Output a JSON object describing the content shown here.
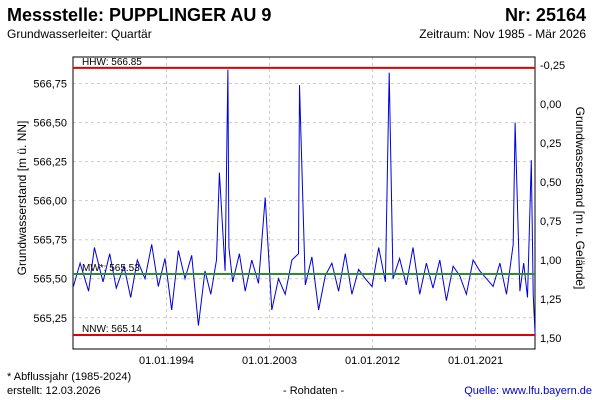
{
  "header": {
    "title": "Messstelle: PUPPLINGER AU 9",
    "number": "Nr: 25164",
    "aquifer": "Grundwasserleiter: Quartär",
    "period": "Zeitraum: Nov 1985 - Mär 2026"
  },
  "footer": {
    "note": "* Abflussjahr (1985-2024)",
    "created": "erstellt:  12.03.2026",
    "raw": "- Rohdaten -",
    "source": "Quelle: www.lfu.bayern.de"
  },
  "colors": {
    "series": "#0000dd",
    "extremes": "#e00000",
    "mean": "#2e8b2e",
    "grid": "#cccccc"
  },
  "chart_data": {
    "type": "line",
    "xlabel": "",
    "ylabel": "Grundwasserstand [m ü. NN]",
    "y2label": "Grundwasserstand [m u. Gelände]",
    "x_range": [
      "1985-11-01",
      "2026-03-12"
    ],
    "ylim": [
      565.05,
      566.92
    ],
    "y2lim": [
      1.57,
      -0.3
    ],
    "x_ticks": [
      "01.01.1994",
      "01.01.2003",
      "01.01.2012",
      "01.01.2021"
    ],
    "y_ticks": [
      "565,25",
      "565,50",
      "565,75",
      "566,00",
      "566,25",
      "566,50",
      "566,75"
    ],
    "y_tick_values": [
      565.25,
      565.5,
      565.75,
      566.0,
      566.25,
      566.5,
      566.75
    ],
    "y2_ticks": [
      "-0,25",
      "0,00",
      "0,25",
      "0,50",
      "0,75",
      "1,00",
      "1,25",
      "1,50"
    ],
    "y2_tick_values": [
      -0.25,
      0.0,
      0.25,
      0.5,
      0.75,
      1.0,
      1.25,
      1.5
    ],
    "grid": true,
    "reference_lines": [
      {
        "label": "HHW: 566.85",
        "value": 566.85,
        "kind": "extremes"
      },
      {
        "label": "MW*: 565.53",
        "value": 565.53,
        "kind": "mean"
      },
      {
        "label": "NNW: 565.14",
        "value": 565.14,
        "kind": "extremes"
      }
    ],
    "series": [
      {
        "x": [
          "1985-11",
          "1986-06",
          "1987-03",
          "1987-09",
          "1988-06",
          "1989-01",
          "1989-08",
          "1990-04",
          "1990-11",
          "1991-06",
          "1992-02",
          "1992-09",
          "1993-04",
          "1993-11",
          "1994-06",
          "1995-01",
          "1995-08",
          "1996-03",
          "1996-10",
          "1997-05",
          "1997-11",
          "1998-05",
          "1998-08",
          "1999-02",
          "1999-05",
          "1999-06",
          "1999-10",
          "2000-05",
          "2000-11",
          "2001-06",
          "2002-01",
          "2002-08",
          "2003-03",
          "2003-10",
          "2004-05",
          "2004-12",
          "2005-07",
          "2005-08",
          "2006-02",
          "2006-09",
          "2007-04",
          "2007-11",
          "2008-06",
          "2009-01",
          "2009-08",
          "2010-03",
          "2010-10",
          "2011-05",
          "2011-12",
          "2012-07",
          "2013-02",
          "2013-06",
          "2013-10",
          "2014-05",
          "2014-12",
          "2015-07",
          "2016-02",
          "2016-09",
          "2017-04",
          "2017-11",
          "2018-06",
          "2019-01",
          "2019-08",
          "2020-03",
          "2020-10",
          "2021-05",
          "2021-12",
          "2022-07",
          "2023-02",
          "2023-09",
          "2024-04",
          "2024-06",
          "2024-11",
          "2025-03",
          "2025-07",
          "2025-11",
          "2026-01",
          "2026-03"
        ],
        "values": [
          565.45,
          565.6,
          565.42,
          565.7,
          565.48,
          565.66,
          565.44,
          565.58,
          565.38,
          565.62,
          565.5,
          565.72,
          565.45,
          565.63,
          565.3,
          565.68,
          565.5,
          565.65,
          565.2,
          565.55,
          565.4,
          565.62,
          566.18,
          565.55,
          566.84,
          565.7,
          565.48,
          565.66,
          565.42,
          565.62,
          565.47,
          566.02,
          565.3,
          565.5,
          565.4,
          565.62,
          565.66,
          566.74,
          565.46,
          565.64,
          565.3,
          565.52,
          565.6,
          565.42,
          565.66,
          565.4,
          565.56,
          565.5,
          565.45,
          565.7,
          565.48,
          566.82,
          565.5,
          565.63,
          565.46,
          565.7,
          565.4,
          565.6,
          565.44,
          565.62,
          565.36,
          565.58,
          565.52,
          565.4,
          565.62,
          565.55,
          565.5,
          565.45,
          565.6,
          565.4,
          565.72,
          566.5,
          565.42,
          565.6,
          565.38,
          566.26,
          565.4,
          565.14
        ]
      }
    ]
  }
}
